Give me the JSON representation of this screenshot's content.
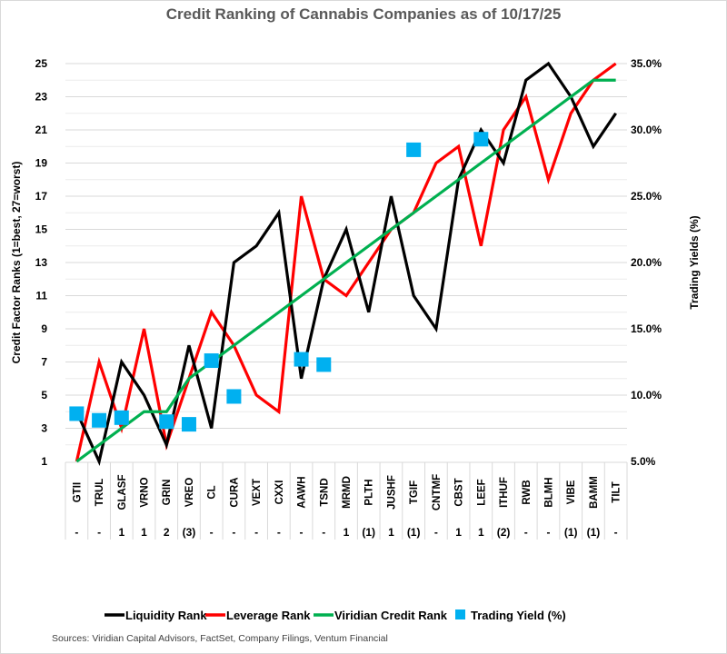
{
  "chart_data": {
    "type": "line",
    "title": "Credit Ranking of Cannabis Companies as of 10/17/25",
    "ylabel": "Credit Factor Ranks (1=best, 27=worst)",
    "y2label": "Trading Yields (%)",
    "ylim": [
      1,
      25
    ],
    "y_ticks": [
      "1",
      "3",
      "5",
      "7",
      "9",
      "11",
      "13",
      "15",
      "17",
      "19",
      "21",
      "23",
      "25"
    ],
    "y2lim": [
      5.0,
      35.0
    ],
    "y2_ticks": [
      "5.0%",
      "10.0%",
      "15.0%",
      "20.0%",
      "25.0%",
      "30.0%",
      "35.0%"
    ],
    "grid": true,
    "categories": [
      "GTII",
      "TRUL",
      "GLASF",
      "VRNO",
      "GRIN",
      "VREO",
      "CL",
      "CURA",
      "VEXT",
      "CXXI",
      "AAWH",
      "TSND",
      "MRMD",
      "PLTH",
      "JUSHF",
      "TGIF",
      "CNTMF",
      "CBST",
      "LEEF",
      "ITHUF",
      "RWB",
      "BLMH",
      "VIBE",
      "BAMM",
      "TILT"
    ],
    "sub_labels": [
      "-",
      "-",
      "1",
      "1",
      "2",
      "(3)",
      "-",
      "-",
      "-",
      "-",
      "-",
      "-",
      "1",
      "(1)",
      "1",
      "(1)",
      "-",
      "1",
      "1",
      "(2)",
      "-",
      "-",
      "(1)",
      "(1)",
      "-"
    ],
    "series": [
      {
        "name": "Liquidity Rank",
        "color": "#000000",
        "axis": "left",
        "type": "line",
        "values": [
          4,
          1,
          7,
          5,
          2,
          8,
          3,
          13,
          14,
          16,
          6,
          12,
          15,
          10,
          17,
          11,
          9,
          18,
          21,
          19,
          24,
          25,
          23,
          20,
          22
        ]
      },
      {
        "name": "Leverage Rank",
        "color": "#ff0000",
        "axis": "left",
        "type": "line",
        "values": [
          1,
          7,
          3,
          9,
          2,
          6,
          10,
          8,
          5,
          4,
          17,
          12,
          11,
          13,
          15,
          16,
          19,
          20,
          14,
          21,
          23,
          18,
          22,
          24,
          25
        ]
      },
      {
        "name": "Viridian Credit Rank",
        "color": "#00b050",
        "axis": "left",
        "type": "line",
        "values": [
          1,
          2,
          3,
          4,
          4,
          6,
          7,
          8,
          9,
          10,
          11,
          12,
          13,
          14,
          15,
          16,
          17,
          18,
          19,
          20,
          21,
          22,
          23,
          24,
          24
        ]
      },
      {
        "name": "Trading Yield (%)",
        "color": "#00b0f0",
        "axis": "right",
        "type": "scatter",
        "values": [
          8.6,
          8.1,
          8.3,
          null,
          8.0,
          7.8,
          12.6,
          9.9,
          null,
          null,
          12.7,
          12.3,
          null,
          null,
          null,
          28.5,
          null,
          null,
          29.3,
          null,
          null,
          null,
          null,
          null,
          null
        ]
      }
    ],
    "legend_position": "bottom"
  },
  "sources": "Sources: Viridian Capital Advisors, FactSet, Company Filings, Ventum Financial"
}
